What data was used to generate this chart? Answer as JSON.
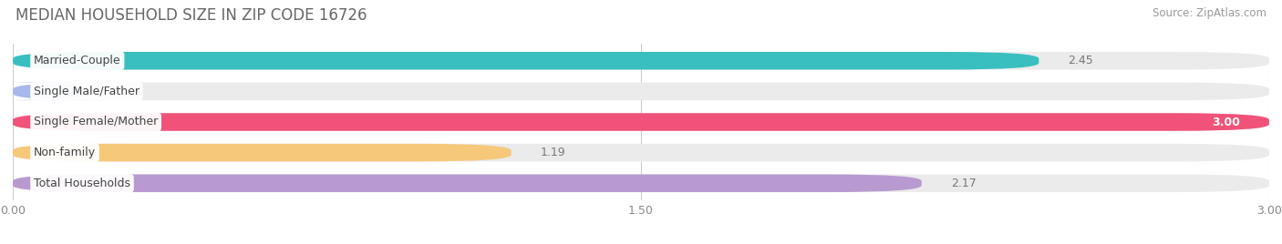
{
  "title": "MEDIAN HOUSEHOLD SIZE IN ZIP CODE 16726",
  "source": "Source: ZipAtlas.com",
  "categories": [
    "Married-Couple",
    "Single Male/Father",
    "Single Female/Mother",
    "Non-family",
    "Total Households"
  ],
  "values": [
    2.45,
    0.0,
    3.0,
    1.19,
    2.17
  ],
  "bar_colors": [
    "#3abfbf",
    "#a8b8ec",
    "#f0527a",
    "#f5c87a",
    "#b89ad0"
  ],
  "bar_bg_colors": [
    "#ebebeb",
    "#ebebeb",
    "#ebebeb",
    "#ebebeb",
    "#ebebeb"
  ],
  "xlim": [
    0,
    3.0
  ],
  "xticks": [
    0.0,
    1.5,
    3.0
  ],
  "xtick_labels": [
    "0.00",
    "1.50",
    "3.00"
  ],
  "title_fontsize": 12,
  "source_fontsize": 8.5,
  "label_fontsize": 9,
  "tick_fontsize": 9,
  "background_color": "#ffffff",
  "value_label_threshold": 2.7
}
